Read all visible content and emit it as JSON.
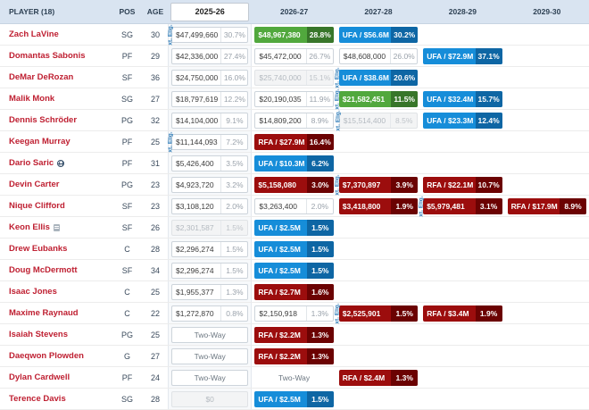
{
  "labels": {
    "ext": "xt. Elig."
  },
  "header": {
    "player": "PLAYER (18)",
    "pos": "POS",
    "age": "AGE",
    "years": [
      "2025-26",
      "2026-27",
      "2027-28",
      "2028-29",
      "2029-30"
    ],
    "selected_year": "2025-26"
  },
  "colors": {
    "green": "#51a83d",
    "green_dark": "#38762a",
    "blue": "#168dd9",
    "blue_dark": "#0e66a4",
    "red": "#9c0d0d",
    "red_dark": "#6b0202",
    "link": "#bf2032",
    "header_bg": "#d9e4f1"
  },
  "rows": [
    {
      "player": "Zach LaVine",
      "pos": "SG",
      "age": "30",
      "icon": null,
      "cells": [
        {
          "text": "$47,499,660",
          "pct": "30.7%",
          "style": "plain",
          "ext": true
        },
        {
          "text": "$48,967,380",
          "pct": "28.8%",
          "style": "green",
          "ext": false
        },
        {
          "text": "UFA / $56.6M",
          "pct": "30.2%",
          "style": "blue",
          "ext": false
        },
        null,
        null
      ]
    },
    {
      "player": "Domantas Sabonis",
      "pos": "PF",
      "age": "29",
      "icon": null,
      "cells": [
        {
          "text": "$42,336,000",
          "pct": "27.4%",
          "style": "plain",
          "ext": false
        },
        {
          "text": "$45,472,000",
          "pct": "26.7%",
          "style": "plain",
          "ext": false
        },
        {
          "text": "$48,608,000",
          "pct": "26.0%",
          "style": "plain",
          "ext": false
        },
        {
          "text": "UFA / $72.9M",
          "pct": "37.1%",
          "style": "blue",
          "ext": false
        },
        null
      ]
    },
    {
      "player": "DeMar DeRozan",
      "pos": "SF",
      "age": "36",
      "icon": null,
      "cells": [
        {
          "text": "$24,750,000",
          "pct": "16.0%",
          "style": "plain",
          "ext": false
        },
        {
          "text": "$25,740,000",
          "pct": "15.1%",
          "style": "muted",
          "ext": false
        },
        {
          "text": "UFA / $38.6M",
          "pct": "20.6%",
          "style": "blue",
          "ext": true
        },
        null,
        null
      ]
    },
    {
      "player": "Malik Monk",
      "pos": "SG",
      "age": "27",
      "icon": null,
      "cells": [
        {
          "text": "$18,797,619",
          "pct": "12.2%",
          "style": "plain",
          "ext": false
        },
        {
          "text": "$20,190,035",
          "pct": "11.9%",
          "style": "plain",
          "ext": false
        },
        {
          "text": "$21,582,451",
          "pct": "11.5%",
          "style": "green",
          "ext": true
        },
        {
          "text": "UFA / $32.4M",
          "pct": "15.7%",
          "style": "blue",
          "ext": false
        },
        null
      ]
    },
    {
      "player": "Dennis Schröder",
      "pos": "PG",
      "age": "32",
      "icon": null,
      "cells": [
        {
          "text": "$14,104,000",
          "pct": "9.1%",
          "style": "plain",
          "ext": false
        },
        {
          "text": "$14,809,200",
          "pct": "8.9%",
          "style": "plain",
          "ext": false
        },
        {
          "text": "$15,514,400",
          "pct": "8.5%",
          "style": "muted",
          "ext": true
        },
        {
          "text": "UFA / $23.3M",
          "pct": "12.4%",
          "style": "blue",
          "ext": false
        },
        null
      ]
    },
    {
      "player": "Keegan Murray",
      "pos": "PF",
      "age": "25",
      "icon": null,
      "cells": [
        {
          "text": "$11,144,093",
          "pct": "7.2%",
          "style": "plain",
          "ext": true
        },
        {
          "text": "RFA / $27.9M",
          "pct": "16.4%",
          "style": "red",
          "ext": false
        },
        null,
        null,
        null
      ]
    },
    {
      "player": "Dario Saric",
      "pos": "PF",
      "age": "31",
      "icon": "globe",
      "cells": [
        {
          "text": "$5,426,400",
          "pct": "3.5%",
          "style": "plain",
          "ext": false
        },
        {
          "text": "UFA / $10.3M",
          "pct": "6.2%",
          "style": "blue",
          "ext": false
        },
        null,
        null,
        null
      ]
    },
    {
      "player": "Devin Carter",
      "pos": "PG",
      "age": "23",
      "icon": null,
      "cells": [
        {
          "text": "$4,923,720",
          "pct": "3.2%",
          "style": "plain",
          "ext": false
        },
        {
          "text": "$5,158,080",
          "pct": "3.0%",
          "style": "red",
          "ext": false
        },
        {
          "text": "$7,370,897",
          "pct": "3.9%",
          "style": "red",
          "ext": true
        },
        {
          "text": "RFA / $22.1M",
          "pct": "10.7%",
          "style": "red",
          "ext": false
        },
        null
      ]
    },
    {
      "player": "Nique Clifford",
      "pos": "SF",
      "age": "23",
      "icon": null,
      "cells": [
        {
          "text": "$3,108,120",
          "pct": "2.0%",
          "style": "plain",
          "ext": false
        },
        {
          "text": "$3,263,400",
          "pct": "2.0%",
          "style": "plain",
          "ext": false
        },
        {
          "text": "$3,418,800",
          "pct": "1.9%",
          "style": "red",
          "ext": false
        },
        {
          "text": "$5,979,481",
          "pct": "3.1%",
          "style": "red",
          "ext": true
        },
        {
          "text": "RFA / $17.9M",
          "pct": "8.9%",
          "style": "red",
          "ext": false
        }
      ]
    },
    {
      "player": "Keon Ellis",
      "pos": "SF",
      "age": "26",
      "icon": "doc",
      "cells": [
        {
          "text": "$2,301,587",
          "pct": "1.5%",
          "style": "muted",
          "ext": false
        },
        {
          "text": "UFA / $2.5M",
          "pct": "1.5%",
          "style": "blue",
          "ext": false
        },
        null,
        null,
        null
      ]
    },
    {
      "player": "Drew Eubanks",
      "pos": "C",
      "age": "28",
      "icon": null,
      "cells": [
        {
          "text": "$2,296,274",
          "pct": "1.5%",
          "style": "plain",
          "ext": false
        },
        {
          "text": "UFA / $2.5M",
          "pct": "1.5%",
          "style": "blue",
          "ext": false
        },
        null,
        null,
        null
      ]
    },
    {
      "player": "Doug McDermott",
      "pos": "SF",
      "age": "34",
      "icon": null,
      "cells": [
        {
          "text": "$2,296,274",
          "pct": "1.5%",
          "style": "plain",
          "ext": false
        },
        {
          "text": "UFA / $2.5M",
          "pct": "1.5%",
          "style": "blue",
          "ext": false
        },
        null,
        null,
        null
      ]
    },
    {
      "player": "Isaac Jones",
      "pos": "C",
      "age": "25",
      "icon": null,
      "cells": [
        {
          "text": "$1,955,377",
          "pct": "1.3%",
          "style": "plain",
          "ext": false
        },
        {
          "text": "RFA / $2.7M",
          "pct": "1.6%",
          "style": "red",
          "ext": false
        },
        null,
        null,
        null
      ]
    },
    {
      "player": "Maxime Raynaud",
      "pos": "C",
      "age": "22",
      "icon": null,
      "cells": [
        {
          "text": "$1,272,870",
          "pct": "0.8%",
          "style": "plain",
          "ext": false
        },
        {
          "text": "$2,150,918",
          "pct": "1.3%",
          "style": "plain",
          "ext": false
        },
        {
          "text": "$2,525,901",
          "pct": "1.5%",
          "style": "red",
          "ext": true
        },
        {
          "text": "RFA / $3.4M",
          "pct": "1.9%",
          "style": "red",
          "ext": false
        },
        null
      ]
    },
    {
      "player": "Isaiah Stevens",
      "pos": "PG",
      "age": "25",
      "icon": null,
      "cells": [
        {
          "text": "Two-Way",
          "pct": null,
          "style": "twoway",
          "ext": false
        },
        {
          "text": "RFA / $2.2M",
          "pct": "1.3%",
          "style": "red",
          "ext": false
        },
        null,
        null,
        null
      ]
    },
    {
      "player": "Daeqwon Plowden",
      "pos": "G",
      "age": "27",
      "icon": null,
      "cells": [
        {
          "text": "Two-Way",
          "pct": null,
          "style": "twoway",
          "ext": false
        },
        {
          "text": "RFA / $2.2M",
          "pct": "1.3%",
          "style": "red",
          "ext": false
        },
        null,
        null,
        null
      ]
    },
    {
      "player": "Dylan Cardwell",
      "pos": "PF",
      "age": "24",
      "icon": null,
      "cells": [
        {
          "text": "Two-Way",
          "pct": null,
          "style": "twoway",
          "ext": false
        },
        {
          "text": "Two-Way",
          "pct": null,
          "style": "twoway-plain",
          "ext": false
        },
        {
          "text": "RFA / $2.4M",
          "pct": "1.3%",
          "style": "red",
          "ext": false
        },
        null,
        null
      ]
    },
    {
      "player": "Terence Davis",
      "pos": "SG",
      "age": "28",
      "icon": null,
      "cells": [
        {
          "text": "$0",
          "pct": null,
          "style": "muted",
          "ext": false
        },
        {
          "text": "UFA / $2.5M",
          "pct": "1.5%",
          "style": "blue",
          "ext": false
        },
        null,
        null,
        null
      ]
    }
  ]
}
